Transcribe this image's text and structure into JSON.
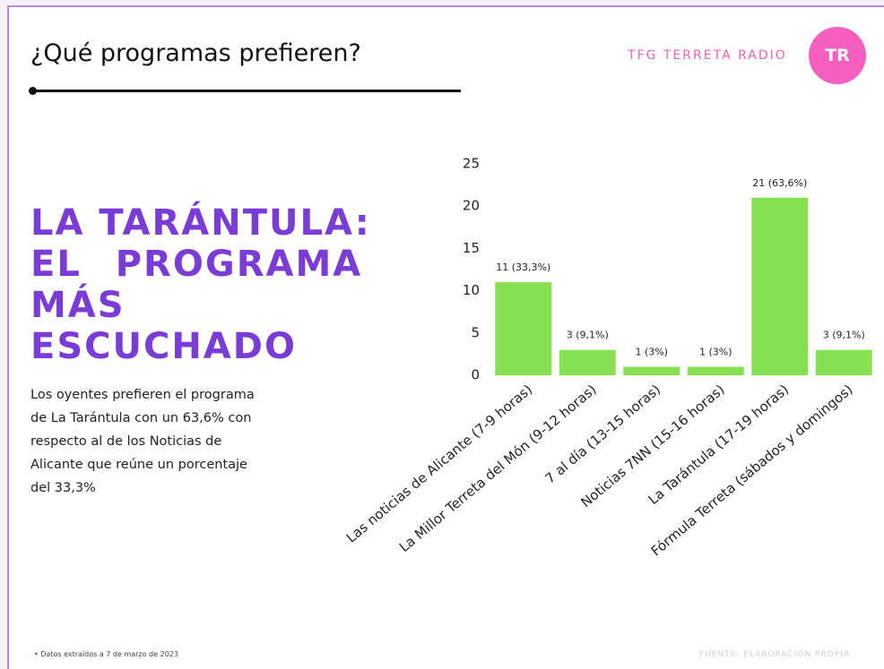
{
  "title": "¿Qué programas prefieren?",
  "brand": "TFG TERRETA RADIO",
  "logo": "TR",
  "headline": [
    "LA TARÁNTULA:",
    "EL PROGRAMA",
    "MÁS",
    "ESCUCHADO"
  ],
  "paragraph": [
    "Los oyentes prefieren el programa",
    "de La Tarántula con un 63,6% con",
    "respecto al de los Noticias de",
    "Alicante que reúne un porcentaje",
    "del 33,3%"
  ],
  "footnote": "• Datos extraídos a 7 de marzo de 2023",
  "source": "FUENTE: ELABORACIÓN PROPIA",
  "chart_data": {
    "type": "bar",
    "categories": [
      "Las noticias de Alicante (7-9 horas)",
      "La Millor Terreta del Món (9-12 horas)",
      "7 al día (13-15 horas)",
      "Noticias 7NN (15-16 horas)",
      "La Tarántula (17-19 horas)",
      "Fórmula Terreta (sábados y domingos)"
    ],
    "values": [
      11,
      3,
      1,
      1,
      21,
      3
    ],
    "value_labels": [
      "11 (33,3%)",
      "3 (9,1%)",
      "1 (3%)",
      "1 (3%)",
      "21 (63,6%)",
      "3 (9,1%)"
    ],
    "color": "#86e04f",
    "ylim": [
      0,
      25
    ],
    "yticks": [
      0,
      5,
      10,
      15,
      20,
      25
    ],
    "grid": false
  }
}
